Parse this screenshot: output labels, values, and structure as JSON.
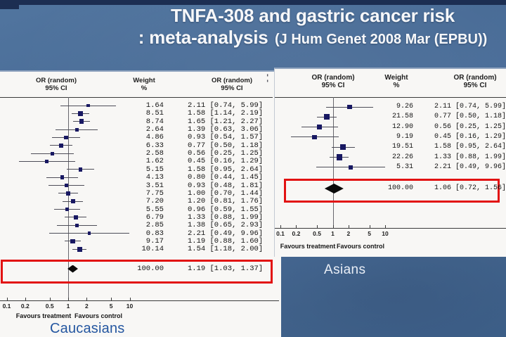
{
  "slide": {
    "title_line1": "TNFA-308 and gastric cancer risk",
    "title_line2_main": ": meta-analysis",
    "title_line2_citation": "(J Hum Genet 2008 Mar (EPBU))"
  },
  "colors": {
    "background_blue": "#4a6d99",
    "top_strip_navy": "#1c2e52",
    "panel_white": "#f8f7f5",
    "highlight_red": "#e21212",
    "marker_navy": "#181862",
    "caucasians_label_blue": "#2456a0",
    "asians_label_white": "#e9eef6"
  },
  "artifacts": {
    "left_panel_fragment": ":"
  },
  "chart_data": [
    {
      "type": "forest",
      "group_label": "Caucasians",
      "x_scale": "log",
      "x_ticks": [
        "0.1",
        "0.2",
        "0.5",
        "1",
        "2",
        "5",
        "10"
      ],
      "favours_left": "Favours treatment",
      "favours_right": "Favours control",
      "columns": [
        {
          "line1": "OR (random)",
          "line2": "95% CI"
        },
        {
          "line1": "Weight",
          "line2": "%"
        },
        {
          "line1": "OR (random)",
          "line2": "95% CI"
        }
      ],
      "studies": [
        {
          "weight": "1.64",
          "or": 2.11,
          "lo": 0.74,
          "hi": 5.99,
          "or_text": "2.11 [0.74, 5.99]"
        },
        {
          "weight": "8.51",
          "or": 1.58,
          "lo": 1.14,
          "hi": 2.19,
          "or_text": "1.58 [1.14, 2.19]"
        },
        {
          "weight": "8.74",
          "or": 1.65,
          "lo": 1.21,
          "hi": 2.27,
          "or_text": "1.65 [1.21, 2.27]"
        },
        {
          "weight": "2.64",
          "or": 1.39,
          "lo": 0.63,
          "hi": 3.06,
          "or_text": "1.39 [0.63, 3.06]"
        },
        {
          "weight": "4.86",
          "or": 0.93,
          "lo": 0.54,
          "hi": 1.57,
          "or_text": "0.93 [0.54, 1.57]"
        },
        {
          "weight": "6.33",
          "or": 0.77,
          "lo": 0.5,
          "hi": 1.18,
          "or_text": "0.77 [0.50, 1.18]"
        },
        {
          "weight": "2.58",
          "or": 0.56,
          "lo": 0.25,
          "hi": 1.25,
          "or_text": "0.56 [0.25, 1.25]"
        },
        {
          "weight": "1.62",
          "or": 0.45,
          "lo": 0.16,
          "hi": 1.29,
          "or_text": "0.45 [0.16, 1.29]"
        },
        {
          "weight": "5.15",
          "or": 1.58,
          "lo": 0.95,
          "hi": 2.64,
          "or_text": "1.58 [0.95, 2.64]"
        },
        {
          "weight": "4.13",
          "or": 0.8,
          "lo": 0.44,
          "hi": 1.45,
          "or_text": "0.80 [0.44, 1.45]"
        },
        {
          "weight": "3.51",
          "or": 0.93,
          "lo": 0.48,
          "hi": 1.81,
          "or_text": "0.93 [0.48, 1.81]"
        },
        {
          "weight": "7.75",
          "or": 1.0,
          "lo": 0.7,
          "hi": 1.44,
          "or_text": "1.00 [0.70, 1.44]"
        },
        {
          "weight": "7.20",
          "or": 1.2,
          "lo": 0.81,
          "hi": 1.76,
          "or_text": "1.20 [0.81, 1.76]"
        },
        {
          "weight": "5.55",
          "or": 0.96,
          "lo": 0.59,
          "hi": 1.55,
          "or_text": "0.96 [0.59, 1.55]"
        },
        {
          "weight": "6.79",
          "or": 1.33,
          "lo": 0.88,
          "hi": 1.99,
          "or_text": "1.33 [0.88, 1.99]"
        },
        {
          "weight": "2.85",
          "or": 1.38,
          "lo": 0.65,
          "hi": 2.93,
          "or_text": "1.38 [0.65, 2.93]"
        },
        {
          "weight": "0.83",
          "or": 2.21,
          "lo": 0.49,
          "hi": 9.96,
          "or_text": "2.21 [0.49, 9.96]"
        },
        {
          "weight": "9.17",
          "or": 1.19,
          "lo": 0.88,
          "hi": 1.6,
          "or_text": "1.19 [0.88, 1.60]"
        },
        {
          "weight": "10.14",
          "or": 1.54,
          "lo": 1.18,
          "hi": 2.0,
          "or_text": "1.54 [1.18, 2.00]"
        }
      ],
      "total": {
        "weight": "100.00",
        "or": 1.19,
        "lo": 1.03,
        "hi": 1.37,
        "or_text": "1.19 [1.03, 1.37]"
      },
      "summary_highlighted_red": true
    },
    {
      "type": "forest",
      "group_label": "Asians",
      "x_scale": "log",
      "x_ticks": [
        "0.1",
        "0.2",
        "0.5",
        "1",
        "2",
        "5",
        "10"
      ],
      "favours_left": "Favours treatment",
      "favours_right": "Favours control",
      "columns": [
        {
          "line1": "OR (random)",
          "line2": "95% CI"
        },
        {
          "line1": "Weight",
          "line2": "%"
        },
        {
          "line1": "OR (random)",
          "line2": "95% CI"
        }
      ],
      "studies": [
        {
          "weight": "9.26",
          "or": 2.11,
          "lo": 0.74,
          "hi": 5.99,
          "or_text": "2.11 [0.74, 5.99]"
        },
        {
          "weight": "21.58",
          "or": 0.77,
          "lo": 0.5,
          "hi": 1.18,
          "or_text": "0.77 [0.50, 1.18]"
        },
        {
          "weight": "12.90",
          "or": 0.56,
          "lo": 0.25,
          "hi": 1.25,
          "or_text": "0.56 [0.25, 1.25]"
        },
        {
          "weight": "9.19",
          "or": 0.45,
          "lo": 0.16,
          "hi": 1.29,
          "or_text": "0.45 [0.16, 1.29]"
        },
        {
          "weight": "19.51",
          "or": 1.58,
          "lo": 0.95,
          "hi": 2.64,
          "or_text": "1.58 [0.95, 2.64]"
        },
        {
          "weight": "22.26",
          "or": 1.33,
          "lo": 0.88,
          "hi": 1.99,
          "or_text": "1.33 [0.88, 1.99]"
        },
        {
          "weight": "5.31",
          "or": 2.21,
          "lo": 0.49,
          "hi": 9.96,
          "or_text": "2.21 [0.49, 9.96]"
        }
      ],
      "total": {
        "weight": "100.00",
        "or": 1.06,
        "lo": 0.72,
        "hi": 1.56,
        "or_text": "1.06 [0.72, 1.56]"
      },
      "summary_highlighted_red": true
    }
  ]
}
